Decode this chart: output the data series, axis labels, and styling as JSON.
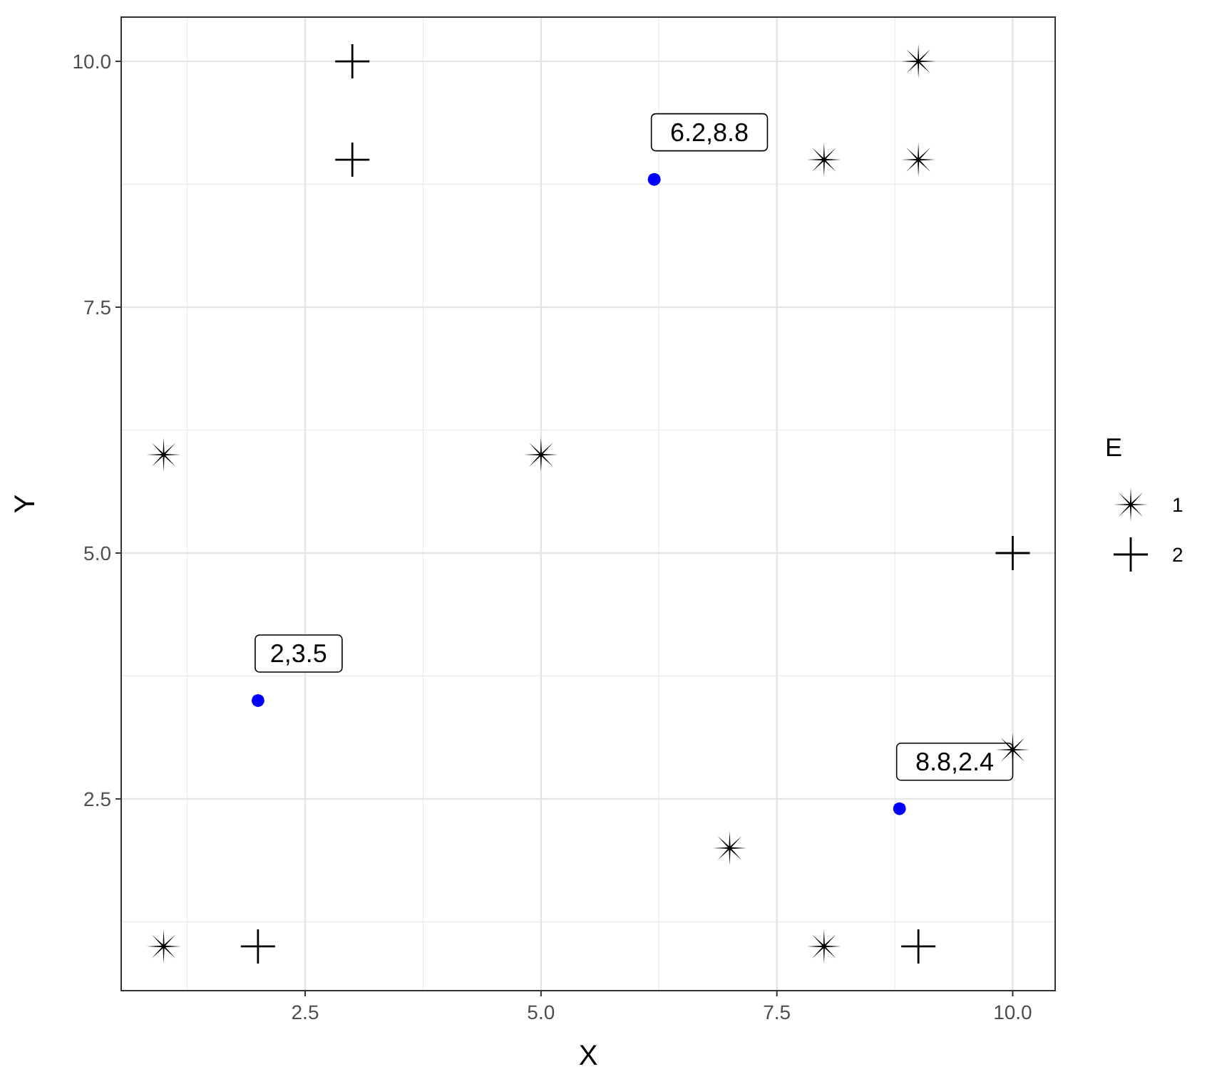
{
  "chart_data": {
    "type": "scatter",
    "xlabel": "X",
    "ylabel": "Y",
    "legend_title": "E",
    "legend": "right",
    "grid": true,
    "xlim": [
      0.55,
      10.45
    ],
    "ylim": [
      0.55,
      10.45
    ],
    "xticks": [
      {
        "value": 2.5,
        "label": "2.5"
      },
      {
        "value": 5,
        "label": "5.0"
      },
      {
        "value": 7.5,
        "label": "7.5"
      },
      {
        "value": 10,
        "label": "10.0"
      }
    ],
    "yticks": [
      {
        "value": 2.5,
        "label": "2.5"
      },
      {
        "value": 5,
        "label": "5.0"
      },
      {
        "value": 7.5,
        "label": "7.5"
      },
      {
        "value": 10,
        "label": "10.0"
      }
    ],
    "series": [
      {
        "name": "1",
        "color": "#000000",
        "marker": "star",
        "x": [
          1,
          1,
          5,
          7,
          8,
          8,
          9,
          9,
          10
        ],
        "values": [
          1,
          6,
          6,
          2,
          1,
          9,
          9,
          10,
          3
        ]
      },
      {
        "name": "2",
        "color": "#000000",
        "marker": "cross",
        "x": [
          2,
          3,
          3,
          9,
          10
        ],
        "values": [
          1,
          9,
          10,
          1,
          5
        ]
      },
      {
        "color": "#0000ff",
        "marker": "circle",
        "x": [
          2,
          6.2,
          8.8
        ],
        "values": [
          3.5,
          8.8,
          2.4
        ]
      }
    ],
    "annotations": [
      {
        "text": "2,3.5",
        "x": 2,
        "y": 3.5
      },
      {
        "text": "6.2,8.8",
        "x": 6.2,
        "y": 8.8
      },
      {
        "text": "8.8,2.4",
        "x": 8.8,
        "y": 2.4
      }
    ]
  }
}
